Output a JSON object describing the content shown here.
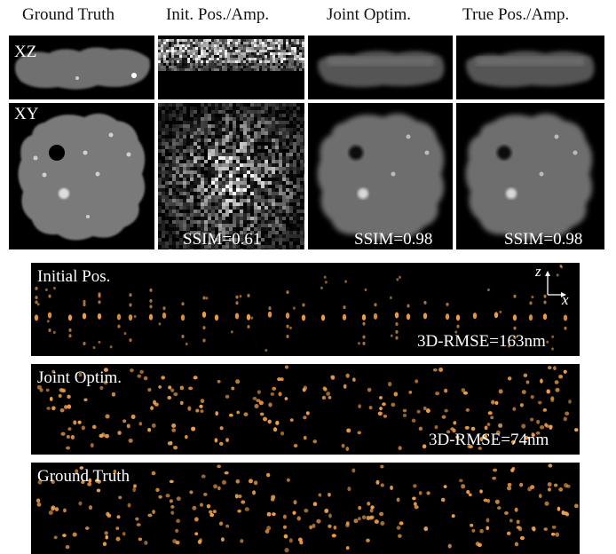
{
  "columns": [
    "Ground Truth",
    "Init. Pos./Amp.",
    "Joint Optim.",
    "True Pos./Amp."
  ],
  "row_labels": {
    "xz": "XZ",
    "xy": "XY"
  },
  "ssim": {
    "init": "SSIM=0.61",
    "joint": "SSIM=0.98",
    "true": "SSIM=0.98"
  },
  "strips": {
    "initial": {
      "label": "Initial Pos.",
      "rmse": "3D-RMSE=163nm"
    },
    "joint": {
      "label": "Joint Optim.",
      "rmse": "3D-RMSE=74nm"
    },
    "truth": {
      "label": "Ground Truth"
    }
  },
  "axes": {
    "z": "z",
    "x": "x"
  },
  "colors": {
    "blob": "#7d7d7d",
    "spot": "#f2a14a",
    "background": "#000000"
  }
}
